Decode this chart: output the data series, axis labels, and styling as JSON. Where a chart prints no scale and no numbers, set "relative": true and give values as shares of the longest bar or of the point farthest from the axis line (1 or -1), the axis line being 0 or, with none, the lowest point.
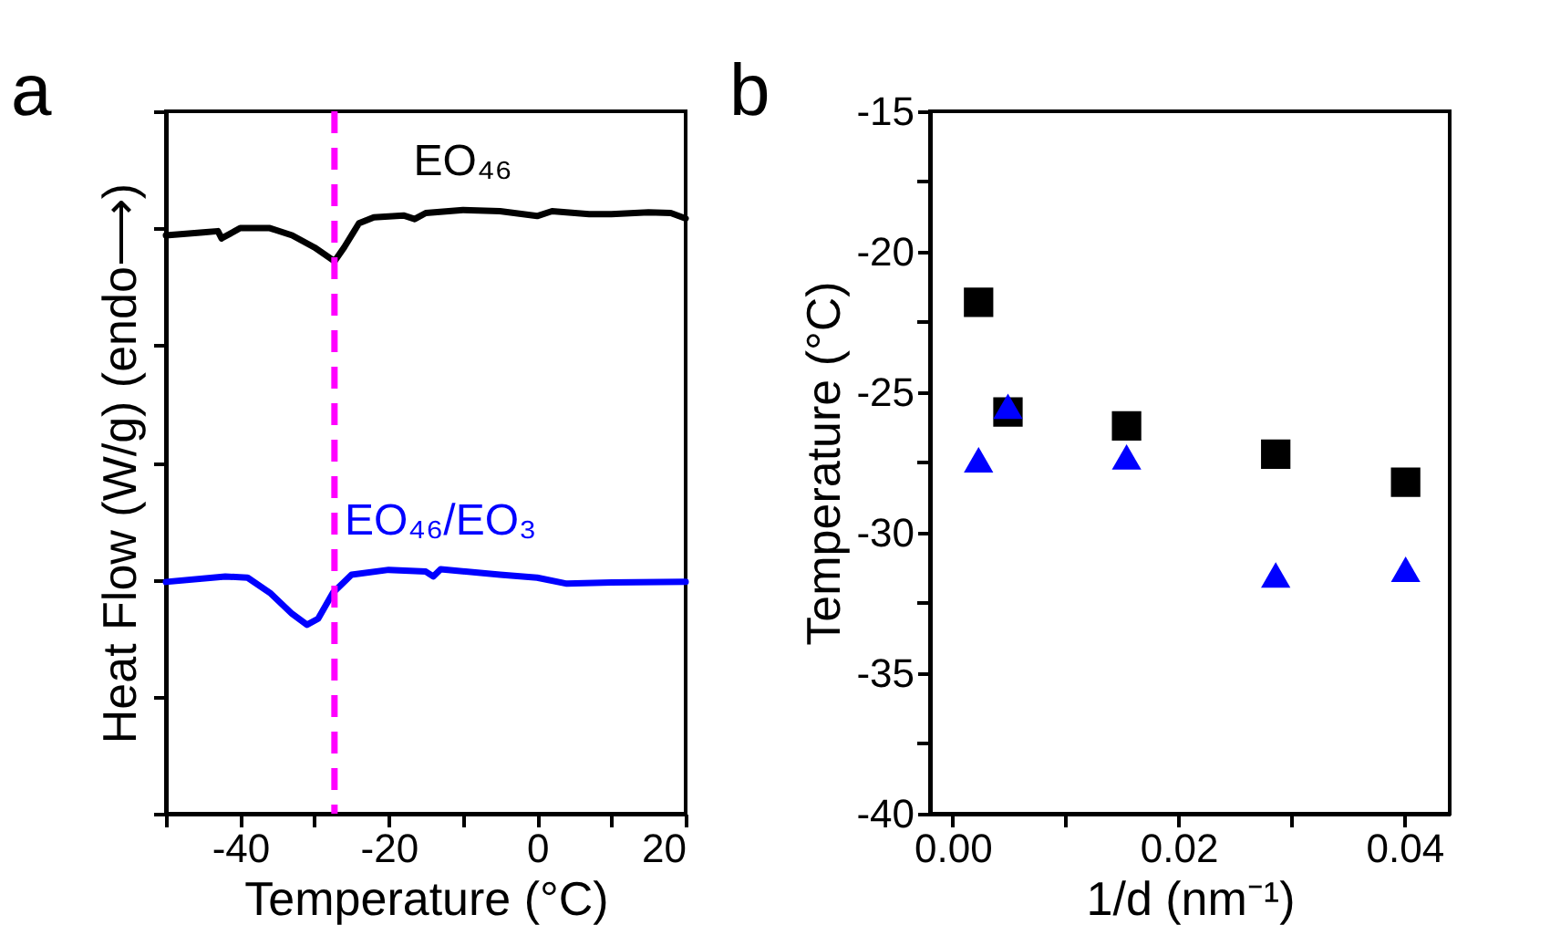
{
  "chart_data": [
    {
      "type": "line",
      "relative": true,
      "xlabel": "Temperature (°C)",
      "ylabel": "Heat Flow (W/g) (endo⟶)",
      "xlim": [
        -50,
        20
      ],
      "xticks": [
        -40,
        -20,
        0,
        20,
        {
          "value": -50,
          "label": null
        },
        {
          "value": -30,
          "label": null
        },
        {
          "value": -10,
          "label": null
        },
        {
          "value": 10,
          "label": null
        }
      ],
      "tick_labels": "x",
      "line_style": "solid",
      "annotations": [
        "a"
      ],
      "ref_lines": [
        {
          "axis": "x",
          "value": -27.3,
          "color": "#ff00ff",
          "line_style": "dashed"
        }
      ],
      "series": [
        {
          "name": "EO₄₆",
          "color": "#000000",
          "x": [
            -50,
            -45,
            -43,
            -42.5,
            -40,
            -36,
            -33,
            -30,
            -28,
            -27.3,
            -26,
            -24,
            -22,
            -18,
            -16.5,
            -15,
            -10,
            -5,
            0,
            2,
            7,
            10,
            15,
            18,
            20
          ],
          "values": [
            0.958,
            0.963,
            0.965,
            0.953,
            0.97,
            0.97,
            0.958,
            0.938,
            0.921,
            0.915,
            0.938,
            0.978,
            0.988,
            0.991,
            0.985,
            0.995,
            1.0,
            0.998,
            0.99,
            0.998,
            0.993,
            0.993,
            0.996,
            0.995,
            0.986
          ]
        },
        {
          "name": "EO₄₆/EO₃",
          "color": "#0000ff",
          "x": [
            -50,
            -42,
            -39,
            -36,
            -33,
            -31,
            -29.5,
            -27.5,
            -25,
            -20,
            -15,
            -14,
            -13,
            -5,
            0,
            4,
            10,
            20
          ],
          "values": [
            0.384,
            0.393,
            0.391,
            0.366,
            0.331,
            0.313,
            0.323,
            0.366,
            0.396,
            0.404,
            0.401,
            0.393,
            0.405,
            0.396,
            0.391,
            0.381,
            0.383,
            0.384
          ]
        }
      ]
    },
    {
      "type": "scatter",
      "xlabel": "1/d (nm⁻¹)",
      "ylabel": "Temperature (°C)",
      "xlim": [
        -0.002,
        0.044
      ],
      "ylim": [
        -40,
        -15
      ],
      "xticks": [
        {
          "value": 0,
          "label": "0.00"
        },
        {
          "value": 0.02,
          "label": "0.02"
        },
        {
          "value": 0.04,
          "label": "0.04"
        },
        {
          "value": 0.01,
          "label": null
        },
        {
          "value": 0.03,
          "label": null
        }
      ],
      "yticks": [
        -40,
        -35,
        -30,
        -25,
        -20,
        -15,
        {
          "value": -37.5,
          "label": null
        },
        {
          "value": -32.5,
          "label": null
        },
        {
          "value": -27.5,
          "label": null
        },
        {
          "value": -22.5,
          "label": null
        },
        {
          "value": -17.5,
          "label": null
        }
      ],
      "annotations": [
        "b"
      ],
      "series": [
        {
          "color": "#000000",
          "marker": "square",
          "x": [
            0.0023,
            0.0049,
            0.0154,
            0.0286,
            0.0401
          ],
          "values": [
            -21.8,
            -25.7,
            -26.2,
            -27.2,
            -28.2
          ]
        },
        {
          "color": "#0000ff",
          "marker": "triangle",
          "x": [
            0.0023,
            0.0049,
            0.0154,
            0.0286,
            0.0401
          ],
          "values": [
            -27.4,
            -25.5,
            -27.3,
            -31.5,
            -31.3
          ]
        }
      ]
    }
  ]
}
